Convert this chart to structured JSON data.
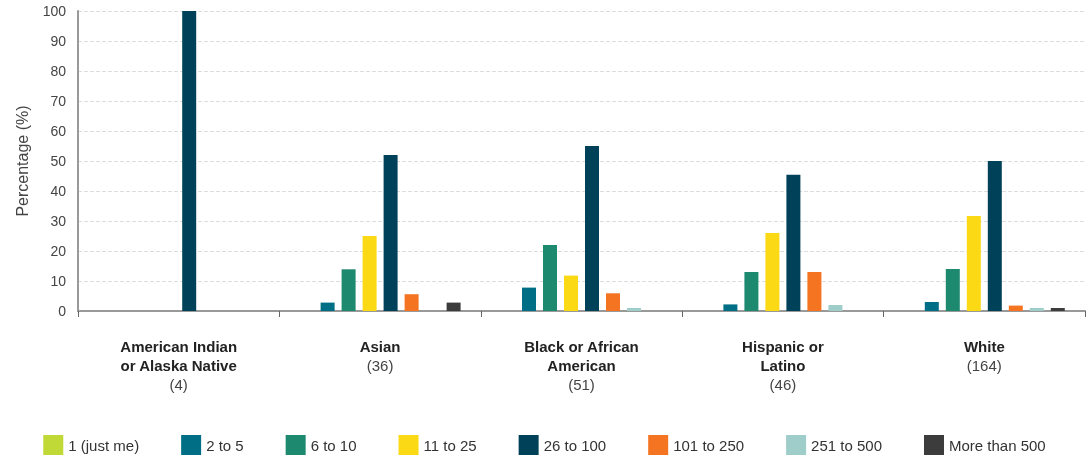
{
  "chart_data": {
    "type": "bar",
    "ylabel": "Percentage (%)",
    "categories": [
      "American Indian\nor Alaska Native\n(4)",
      "Asian\n(36)",
      "Black or African\nAmerican\n(51)",
      "Hispanic or\nLatino\n(46)",
      "White\n(164)"
    ],
    "series": [
      {
        "name": "1 (just me)",
        "color": "#c0d936",
        "values": [
          0,
          0,
          0,
          0,
          0
        ]
      },
      {
        "name": "2 to 5",
        "color": "#006f86",
        "values": [
          0,
          2.8,
          7.8,
          2.2,
          3
        ]
      },
      {
        "name": "6 to 10",
        "color": "#1d8a6f",
        "values": [
          0,
          13.9,
          22,
          13,
          14
        ]
      },
      {
        "name": "11 to 25",
        "color": "#fbd914",
        "values": [
          0,
          25,
          11.8,
          26,
          31.7
        ]
      },
      {
        "name": "26 to 100",
        "color": "#00415a",
        "values": [
          100,
          52,
          55,
          45.4,
          50
        ]
      },
      {
        "name": "101 to 250",
        "color": "#f47421",
        "values": [
          0,
          5.6,
          5.9,
          13,
          1.8
        ]
      },
      {
        "name": "251 to 500",
        "color": "#9fcdca",
        "values": [
          0,
          0,
          1,
          2,
          1
        ]
      },
      {
        "name": "More than 500",
        "color": "#3c3c3c",
        "values": [
          0,
          2.8,
          0,
          0,
          1
        ]
      }
    ],
    "ylim": [
      0,
      100
    ],
    "yticks": [
      0,
      10,
      20,
      30,
      40,
      50,
      60,
      70,
      80,
      90,
      100
    ],
    "grid": "y",
    "legend": "bottom"
  }
}
